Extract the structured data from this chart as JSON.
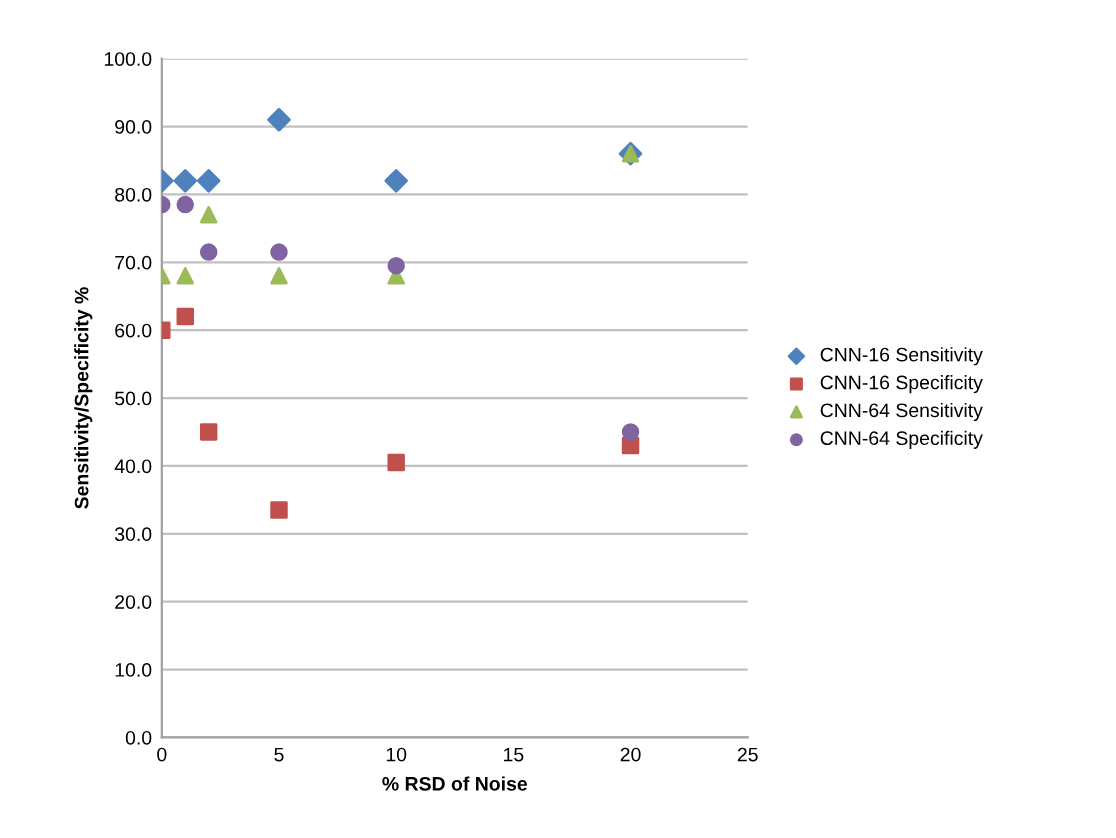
{
  "chart_data": {
    "type": "scatter",
    "xlabel": "% RSD of Noise",
    "ylabel": "Sensitivity/Specificity %",
    "x": [
      0,
      1,
      2,
      5,
      10,
      20
    ],
    "series": [
      {
        "name": "CNN-16 Sensitivity",
        "color": "#4f81bd",
        "marker": "diamond",
        "values": [
          82,
          82,
          82,
          91,
          82,
          86
        ]
      },
      {
        "name": "CNN-16 Specificity",
        "color": "#c0504d",
        "marker": "square",
        "values": [
          60,
          62,
          45,
          33.5,
          40.5,
          43
        ]
      },
      {
        "name": "CNN-64 Sensitivity",
        "color": "#9bbb59",
        "marker": "triangle",
        "values": [
          68,
          68,
          77,
          68,
          68,
          86
        ]
      },
      {
        "name": "CNN-64 Specificity",
        "color": "#8064a2",
        "marker": "circle",
        "values": [
          78.5,
          78.5,
          71.5,
          71.5,
          69.5,
          45
        ]
      }
    ],
    "xlim": [
      0,
      25
    ],
    "xticks": [
      0,
      5,
      10,
      15,
      20,
      25
    ],
    "ylim": [
      0,
      100
    ],
    "yticks": [
      {
        "value": 0,
        "label": "0.0"
      },
      {
        "value": 10,
        "label": "10.0"
      },
      {
        "value": 20,
        "label": "20.0"
      },
      {
        "value": 30,
        "label": "30.0"
      },
      {
        "value": 40,
        "label": "40.0"
      },
      {
        "value": 50,
        "label": "50.0"
      },
      {
        "value": 60,
        "label": "60.0"
      },
      {
        "value": 70,
        "label": "70.0"
      },
      {
        "value": 80,
        "label": "80.0"
      },
      {
        "value": 90,
        "label": "90.0"
      },
      {
        "value": 100,
        "label": "100.0"
      }
    ],
    "grid": "y",
    "legend": "right"
  }
}
